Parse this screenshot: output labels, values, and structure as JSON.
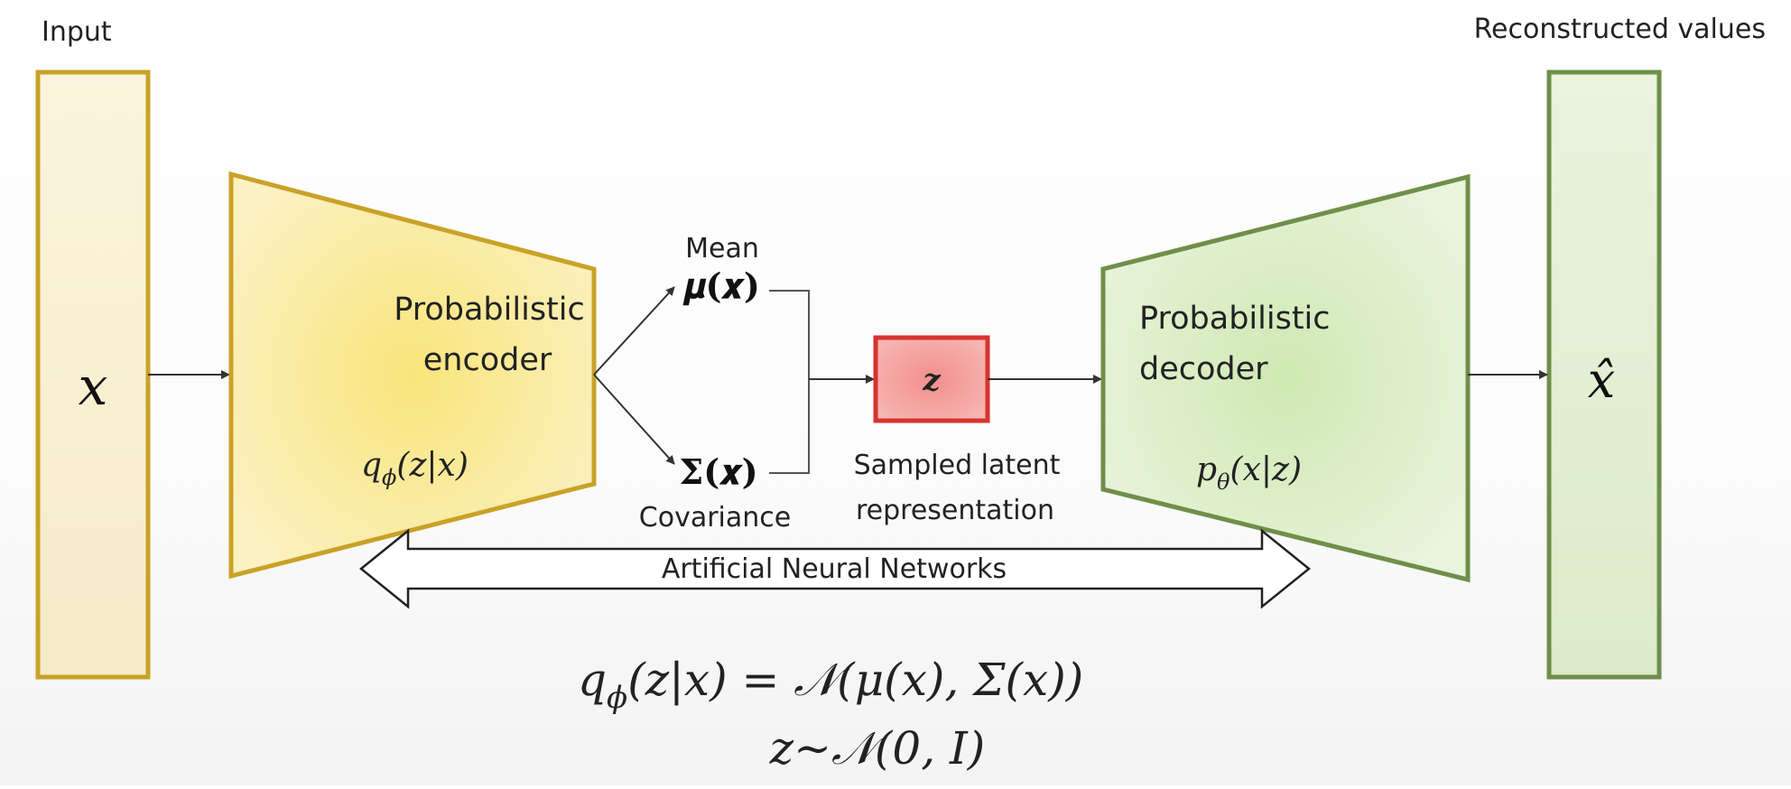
{
  "labels": {
    "input": "Input",
    "reconstructed": "Reconstructed values",
    "x_symbol": "x",
    "xhat_symbol": "x̂",
    "encoder_line1": "Probabilistic",
    "encoder_line2": "encoder",
    "decoder_line1": "Probabilistic",
    "decoder_line2": "decoder",
    "encoder_func_q": "q",
    "encoder_func_sub": "ϕ",
    "encoder_func_args": "(z|x)",
    "decoder_func_p": "p",
    "decoder_func_sub": "θ",
    "decoder_func_args": "(x|z)",
    "mean_label": "Mean",
    "mean_symbol": "𝝁(𝒙)",
    "cov_symbol": "𝚺(𝒙)",
    "cov_label": "Covariance",
    "z_symbol": "z",
    "sampled_line1": "Sampled latent",
    "sampled_line2": "representation",
    "ann_label": "Artificial Neural Networks",
    "eq1_q": "q",
    "eq1_sub": "ϕ",
    "eq1_rest": "(z|x) = 𝒩(μ(x), Σ(x))",
    "eq2": "z∼𝒩(0, I)"
  },
  "colors": {
    "io_yellow_border": "#c9a227",
    "io_yellow_fill": "#f8efcf",
    "encoder_fill": "#f9eca0",
    "encoder_border": "#c9a227",
    "io_green_border": "#6f8f4a",
    "io_green_fill": "#e5efd6",
    "decoder_fill": "#dbeec6",
    "decoder_border": "#6f8f4a",
    "z_border": "#d8332e",
    "z_fill": "#f4a6a3",
    "arrow": "#333333",
    "text": "#222222"
  }
}
